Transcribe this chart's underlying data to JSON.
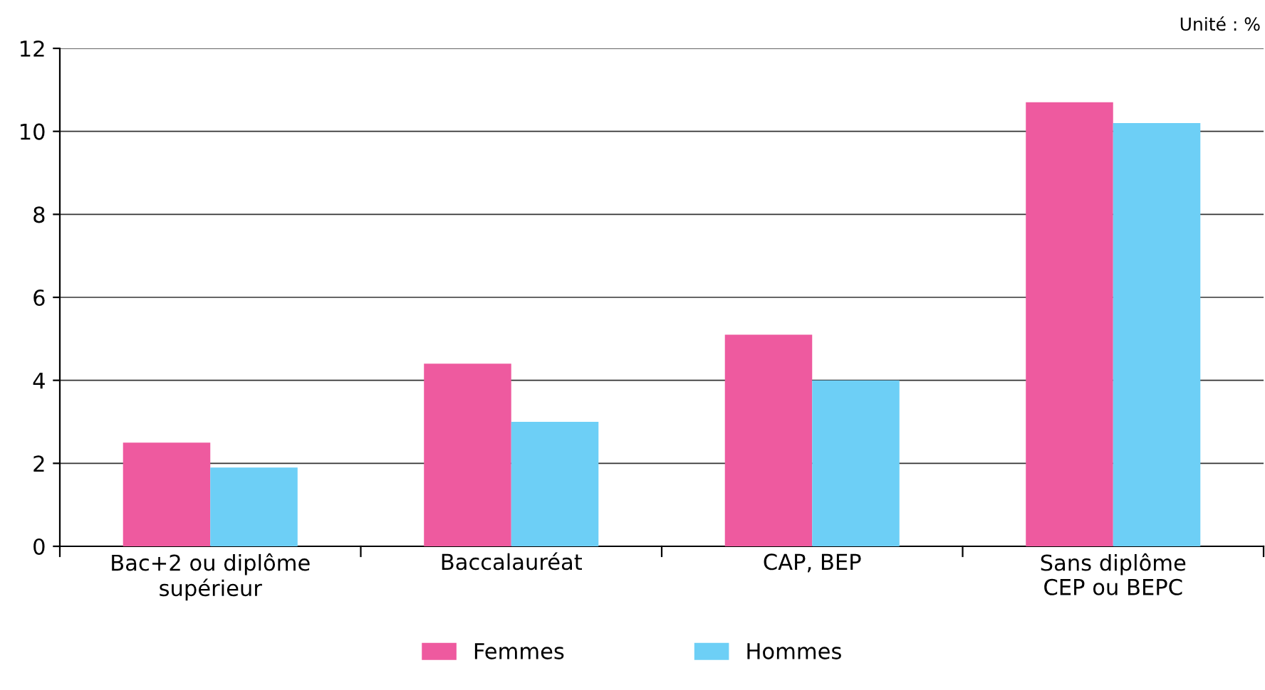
{
  "chart_data": {
    "type": "bar",
    "categories": [
      "Bac+2 ou diplôme\nsupérieur",
      "Baccalauréat",
      "CAP, BEP",
      "Sans diplôme\nCEP ou BEPC"
    ],
    "series": [
      {
        "name": "Femmes",
        "color": "#ee5a9f",
        "values": [
          2.5,
          4.4,
          5.1,
          10.7
        ]
      },
      {
        "name": "Hommes",
        "color": "#6dcff6",
        "values": [
          1.9,
          3.0,
          4.0,
          10.2
        ]
      }
    ],
    "ylim": [
      0,
      12
    ],
    "yticks": [
      0,
      2,
      4,
      6,
      8,
      10,
      12
    ],
    "grid": "y",
    "legend": "bottom",
    "annotations": [
      "Unité : %"
    ]
  }
}
